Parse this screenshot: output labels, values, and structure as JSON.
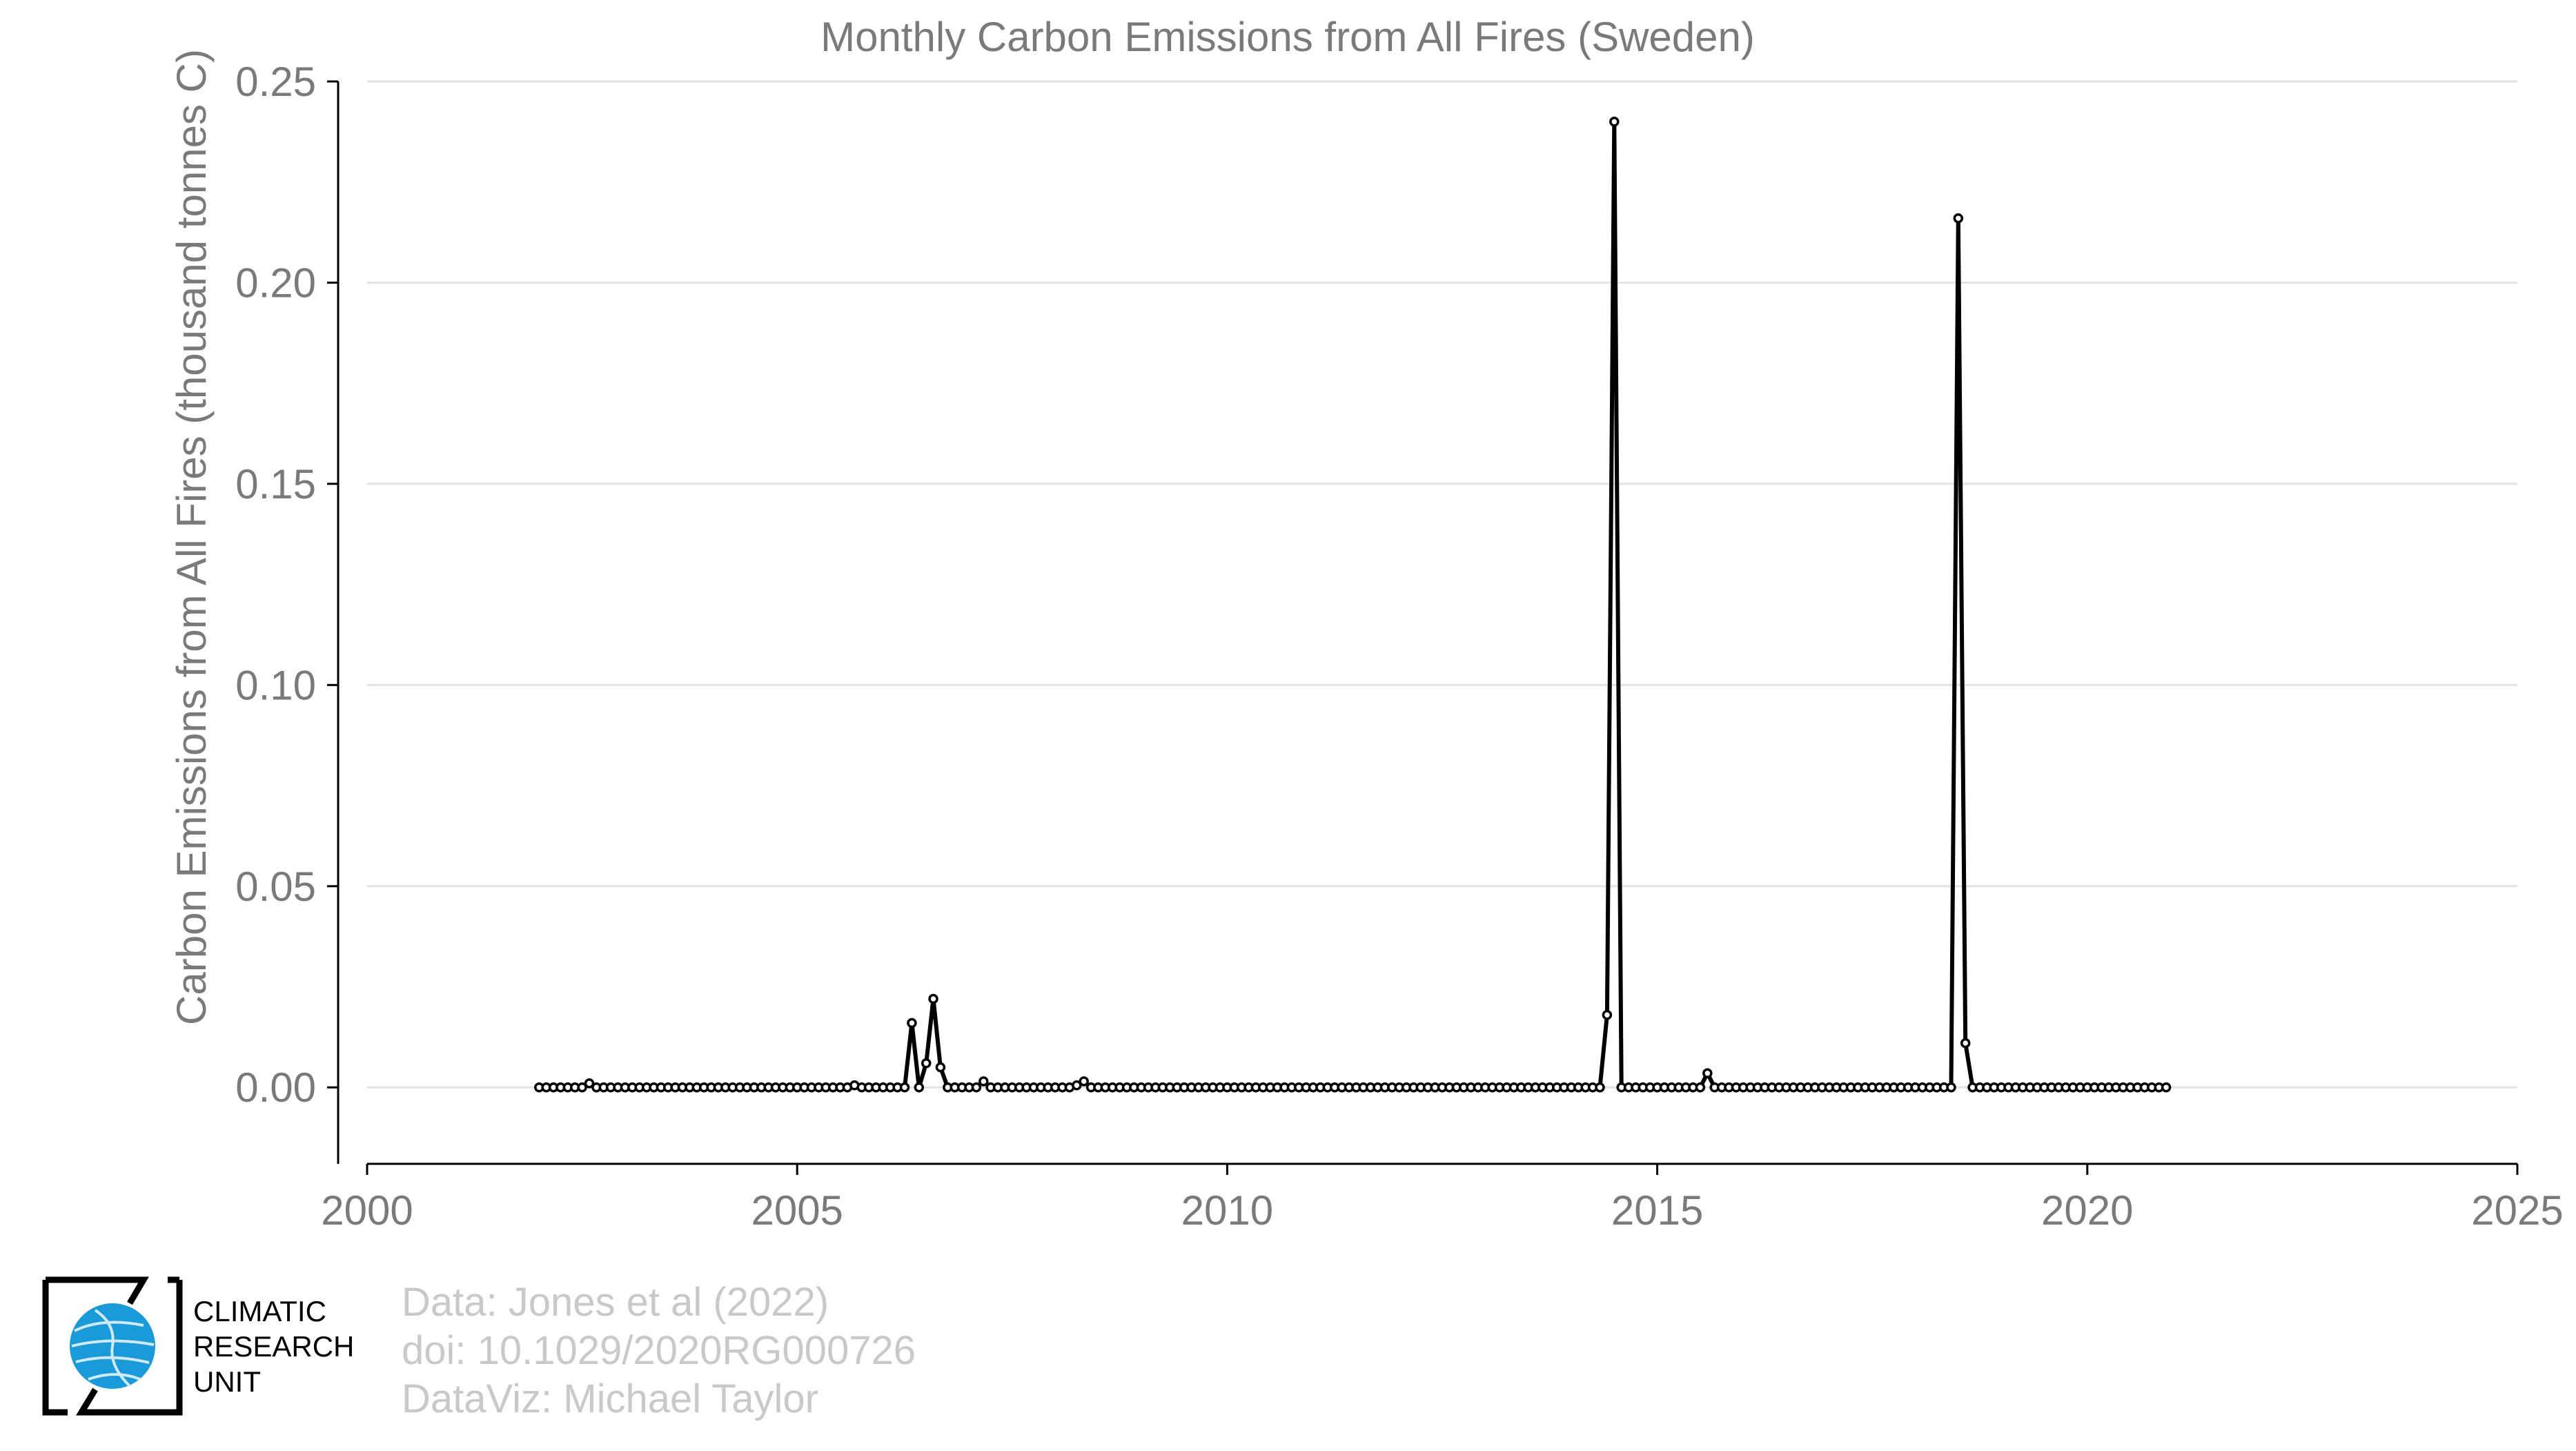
{
  "chart_data": {
    "type": "line",
    "title": "Monthly Carbon Emissions from All Fires (Sweden)",
    "xlabel": "",
    "ylabel": "Carbon Emissions from All Fires (thousand tonnes C)",
    "xlim": [
      2000,
      2025
    ],
    "ylim": [
      -0.019,
      0.25
    ],
    "xticks": [
      "2000",
      "2005",
      "2010",
      "2015",
      "2020",
      "2025"
    ],
    "yticks": [
      "0.00",
      "0.05",
      "0.10",
      "0.15",
      "0.20",
      "0.25"
    ],
    "grid": "horizontal",
    "marker": "open-circle",
    "series": [
      {
        "start": "2002-01",
        "frequency": "monthly",
        "values": [
          0,
          0,
          0,
          0,
          0,
          0,
          0,
          0.001,
          0,
          0,
          0,
          0,
          0,
          0,
          0,
          0,
          0,
          0,
          0,
          0,
          0,
          0,
          0,
          0,
          0,
          0,
          0,
          0,
          0,
          0,
          0,
          0,
          0,
          0,
          0,
          0,
          0,
          0,
          0,
          0,
          0,
          0,
          0,
          0,
          0.0005,
          0,
          0,
          0,
          0,
          0,
          0,
          0,
          0.016,
          0,
          0.006,
          0.022,
          0.005,
          0,
          0,
          0,
          0,
          0,
          0.0015,
          0,
          0,
          0,
          0,
          0,
          0,
          0,
          0,
          0,
          0,
          0,
          0,
          0.0005,
          0.0015,
          0,
          0,
          0,
          0,
          0,
          0,
          0,
          0,
          0,
          0,
          0,
          0,
          0,
          0,
          0,
          0,
          0,
          0,
          0,
          0,
          0,
          0,
          0,
          0,
          0,
          0,
          0,
          0,
          0,
          0,
          0,
          0,
          0,
          0,
          0,
          0,
          0,
          0,
          0,
          0,
          0,
          0,
          0,
          0,
          0,
          0,
          0,
          0,
          0,
          0,
          0,
          0,
          0,
          0,
          0,
          0,
          0,
          0,
          0,
          0,
          0,
          0,
          0,
          0,
          0,
          0,
          0,
          0,
          0,
          0,
          0,
          0,
          0.018,
          0.24,
          0,
          0,
          0,
          0,
          0,
          0,
          0,
          0,
          0,
          0,
          0,
          0,
          0.0035,
          0,
          0,
          0,
          0,
          0,
          0,
          0,
          0,
          0,
          0,
          0,
          0,
          0,
          0,
          0,
          0,
          0,
          0,
          0,
          0,
          0,
          0,
          0,
          0,
          0,
          0,
          0,
          0,
          0,
          0,
          0,
          0,
          0,
          0,
          0.216,
          0.011,
          0,
          0,
          0,
          0,
          0,
          0,
          0,
          0,
          0,
          0,
          0,
          0,
          0,
          0,
          0,
          0,
          0,
          0,
          0,
          0,
          0,
          0,
          0,
          0,
          0,
          0,
          0,
          0
        ]
      }
    ]
  },
  "credits": {
    "line1": "Data: Jones et al (2022)",
    "line2": "doi: 10.1029/2020RG000726",
    "line3": "DataViz: Michael Taylor"
  },
  "logo": {
    "line1": "CLIMATIC",
    "line2": "RESEARCH",
    "line3": "UNIT"
  },
  "colors": {
    "line": "#000000",
    "text": "#7a7a7a",
    "grid": "#e3e3e3",
    "credit": "#c9c9c9",
    "logo_globe": "#1a9ad8"
  }
}
